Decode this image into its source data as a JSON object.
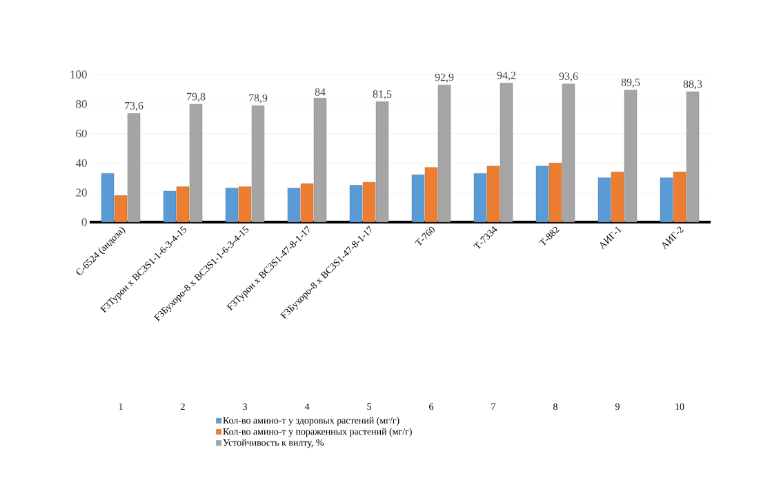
{
  "chart_data": {
    "type": "bar",
    "categories": [
      "С-6524 (андоза)",
      "F3Турон x BC3S1-1-6-3-4-15",
      "F3Бухоро-8 x BC3S1-1-6-3-4-15",
      "F3Турон x BC3S1-47-8-1-17",
      "F3Бухоро-8 x BC3S1-47-8-1-17",
      "Т-760",
      "Т-7334",
      "Т-882",
      "АИГ-1",
      "АИГ-2"
    ],
    "series": [
      {
        "name": "Кол-во амино-т у здоровых растений (мг/г)",
        "color": "#5b9bd5",
        "values": [
          33,
          21,
          23,
          23,
          25,
          32,
          33,
          38,
          30,
          30
        ]
      },
      {
        "name": "Кол-во амино-т у пораженных растений (мг/г)",
        "color": "#ed7d31",
        "values": [
          18,
          24,
          24,
          26,
          27,
          37,
          38,
          40,
          34,
          34
        ]
      },
      {
        "name": "Устойчивость к вилту, %",
        "color": "#a5a5a5",
        "values": [
          73.6,
          79.8,
          78.9,
          84,
          81.5,
          92.9,
          94.2,
          93.6,
          89.5,
          88.3
        ],
        "value_labels": [
          "73,6",
          "79,8",
          "78,9",
          "84",
          "81,5",
          "92,9",
          "94,2",
          "93,6",
          "89,5",
          "88,3"
        ]
      }
    ],
    "ylim": [
      0,
      100
    ],
    "yticks": [
      0,
      20,
      40,
      60,
      80,
      100
    ],
    "grid": "y",
    "legend": "bottom",
    "annotations": [
      "1",
      "2",
      "3",
      "4",
      "5",
      "6",
      "7",
      "8",
      "9",
      "10"
    ]
  }
}
